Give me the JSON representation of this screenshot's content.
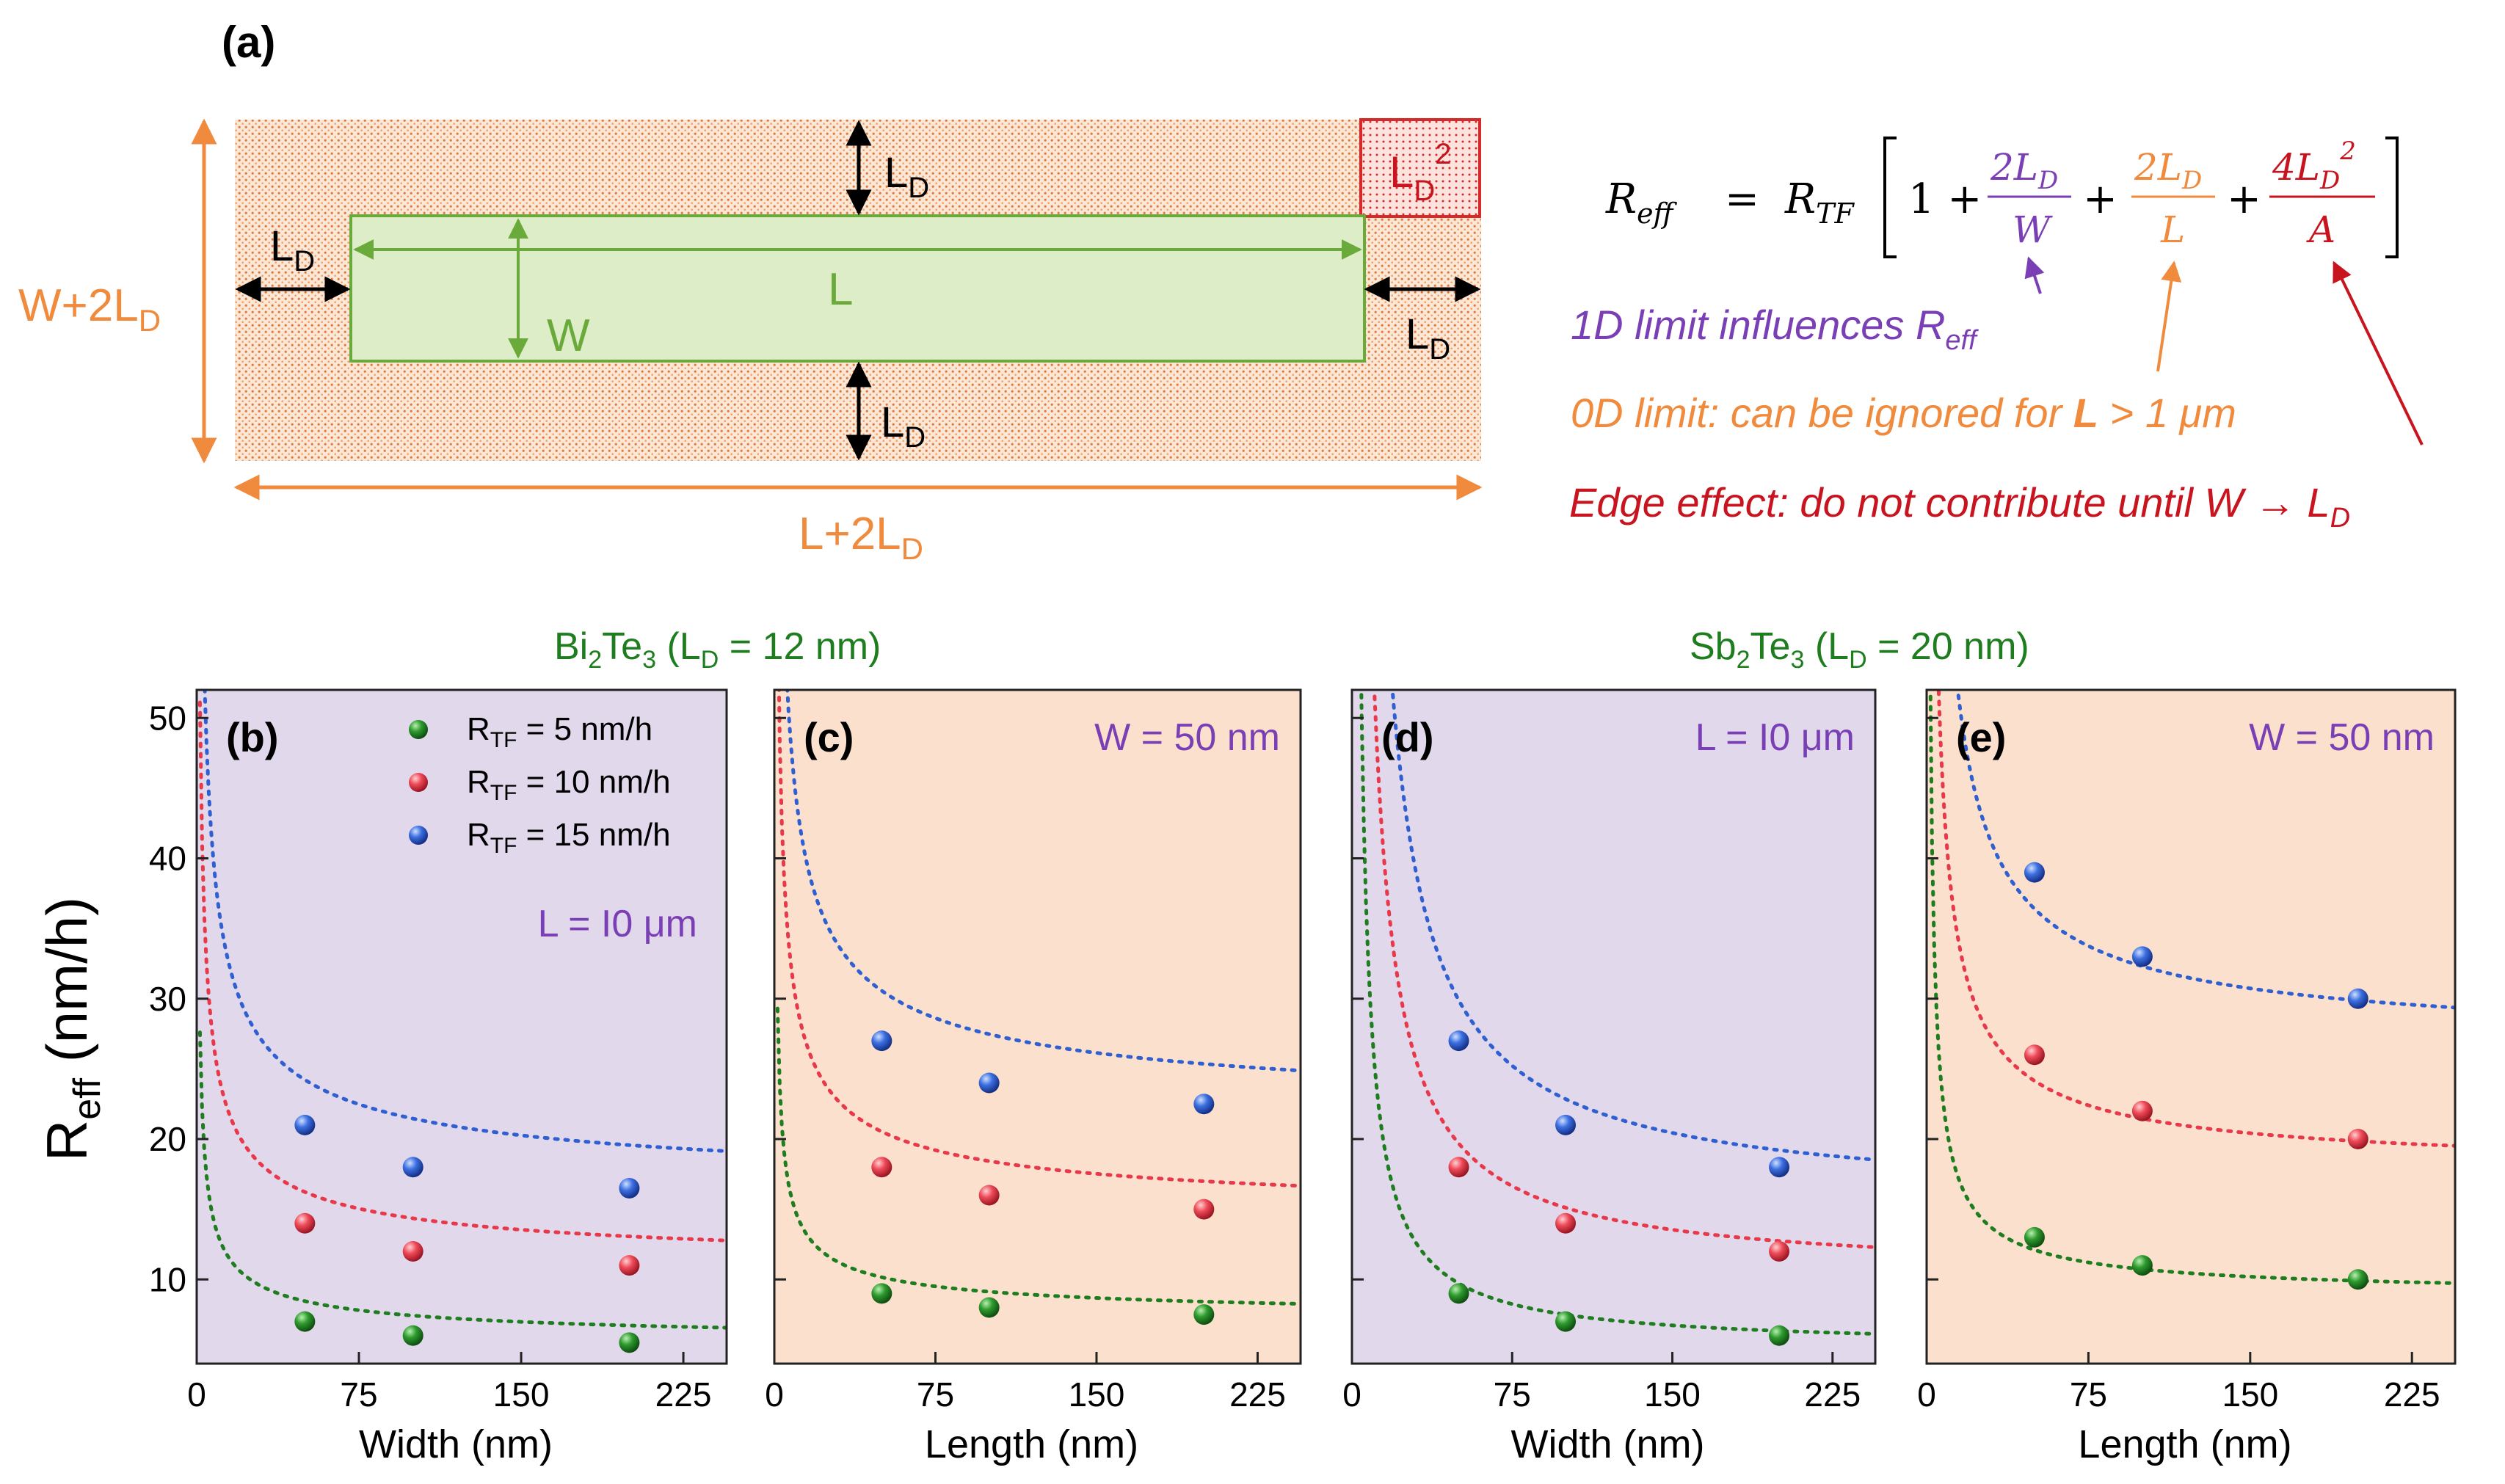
{
  "colors": {
    "green": "#1e7d1e",
    "red": "#e8394a",
    "blue": "#2f5fd0",
    "orange": "#f08a3c",
    "purple": "#7a3fb5",
    "darkred": "#c8141e",
    "panel_purple": "#e2d8ec",
    "panel_orange": "#fbe1cd",
    "rect_green": "#dcedc8",
    "rect_green_edge": "#6aaa3a"
  },
  "diagram": {
    "label": "(a)",
    "ld": "L",
    "ld_sub": "D",
    "ld_sq": "2",
    "w_label": "W",
    "l_label": "L",
    "w2_main": "W+2L",
    "l2_main": "L+2L"
  },
  "equation": {
    "lhs_main": "R",
    "lhs_sub": "eff",
    "equals": "=",
    "rtf_main": "R",
    "rtf_sub": "TF",
    "one_plus": "1 +",
    "plus": "+",
    "f1_num": "2L",
    "f1_num_sub": "D",
    "f1_den": "W",
    "f2_num": "2L",
    "f2_num_sub": "D",
    "f2_den": "L",
    "f3_num": "4L",
    "f3_num_sub": "D",
    "f3_num_sup": "2",
    "f3_den": "A"
  },
  "annotations": {
    "a1_main": "1D limit influences R",
    "a1_sub": "eff",
    "a2_prefix": "0D limit: can be ignored for ",
    "a2_bold": "L",
    "a2_suffix": " > 1 μm",
    "a3_main": "Edge effect: do not contribute until W → L",
    "a3_sub": "D"
  },
  "material_titles": {
    "bi_1": "Bi",
    "bi_2": "2",
    "bi_3": "Te",
    "bi_4": "3",
    "bi_5": " (L",
    "bi_6": "D",
    "bi_7": " = 12 nm)",
    "sb_1": "Sb",
    "sb_2": "2",
    "sb_3": "Te",
    "sb_4": "3",
    "sb_5": " (L",
    "sb_6": "D",
    "sb_7": " = 20 nm)"
  },
  "ylabel_main": "R",
  "ylabel_sub": "eff",
  "ylabel_unit": " (nm/h)",
  "legend": [
    {
      "pre": "R",
      "sub": "TF",
      "post": " =   5 nm/h"
    },
    {
      "pre": "R",
      "sub": "TF",
      "post": " = 10 nm/h"
    },
    {
      "pre": "R",
      "sub": "TF",
      "post": " = 15 nm/h"
    }
  ],
  "chart_data": [
    {
      "type": "scatter",
      "label": "(b)",
      "note": "L = I0 μm",
      "background": "purple",
      "xlabel": "Width (nm)",
      "ylabel": "Reff (nm/h)",
      "xlim": [
        0,
        245
      ],
      "ylim": [
        4,
        52
      ],
      "xticks": [
        0,
        75,
        150,
        225
      ],
      "yticks": [
        10,
        20,
        30,
        40,
        50
      ],
      "x": [
        50,
        100,
        200
      ],
      "series": [
        {
          "name": "RTF = 5 nm/h",
          "color": "green",
          "values": [
            7,
            6,
            5.5
          ],
          "fit_a": 5.2,
          "fit_b": 28,
          "fit_c": 0.55
        },
        {
          "name": "RTF = 10 nm/h",
          "color": "red",
          "values": [
            14,
            12,
            11
          ],
          "fit_a": 10.3,
          "fit_b": 51,
          "fit_c": 0.55
        },
        {
          "name": "RTF = 15 nm/h",
          "color": "blue",
          "values": [
            21,
            18,
            16.5
          ],
          "fit_a": 15.5,
          "fit_b": 75,
          "fit_c": 0.55
        }
      ]
    },
    {
      "type": "scatter",
      "label": "(c)",
      "note": "W = 50 nm",
      "background": "orange",
      "xlabel": "Length (nm)",
      "ylabel": "Reff (nm/h)",
      "xlim": [
        0,
        245
      ],
      "ylim": [
        4,
        52
      ],
      "xticks": [
        0,
        75,
        150,
        225
      ],
      "yticks": [
        10,
        20,
        30,
        40,
        50
      ],
      "x": [
        50,
        100,
        200
      ],
      "series": [
        {
          "name": "RTF = 5 nm/h",
          "color": "green",
          "values": [
            9,
            8,
            7.5
          ],
          "fit_a": 6.9,
          "fit_b": 28,
          "fit_c": 0.55
        },
        {
          "name": "RTF = 10 nm/h",
          "color": "red",
          "values": [
            18,
            16,
            15
          ],
          "fit_a": 13.9,
          "fit_b": 57,
          "fit_c": 0.55
        },
        {
          "name": "RTF = 15 nm/h",
          "color": "blue",
          "values": [
            27,
            24,
            22.5
          ],
          "fit_a": 20.8,
          "fit_b": 84,
          "fit_c": 0.55
        }
      ]
    },
    {
      "type": "scatter",
      "label": "(d)",
      "note": "L = I0 μm",
      "background": "purple",
      "xlabel": "Width (nm)",
      "ylabel": "Reff (nm/h)",
      "xlim": [
        0,
        245
      ],
      "ylim": [
        4,
        52
      ],
      "xticks": [
        0,
        75,
        150,
        225
      ],
      "yticks": [
        10,
        20,
        30,
        40,
        50
      ],
      "x": [
        50,
        100,
        200
      ],
      "series": [
        {
          "name": "RTF = 5 nm/h",
          "color": "green",
          "values": [
            9,
            7,
            6
          ],
          "fit_a": 5.1,
          "fit_b": 190,
          "fit_c": 0.95
        },
        {
          "name": "RTF = 10 nm/h",
          "color": "red",
          "values": [
            18,
            14,
            12
          ],
          "fit_a": 10.2,
          "fit_b": 390,
          "fit_c": 0.95
        },
        {
          "name": "RTF = 15 nm/h",
          "color": "blue",
          "values": [
            27,
            21,
            18
          ],
          "fit_a": 15.3,
          "fit_b": 600,
          "fit_c": 0.95
        }
      ]
    },
    {
      "type": "scatter",
      "label": "(e)",
      "note": "W = 50 nm",
      "background": "orange",
      "xlabel": "Length (nm)",
      "ylabel": "Reff (nm/h)",
      "xlim": [
        0,
        245
      ],
      "ylim": [
        4,
        52
      ],
      "xticks": [
        0,
        75,
        150,
        225
      ],
      "yticks": [
        10,
        20,
        30,
        40,
        50
      ],
      "x": [
        50,
        100,
        200
      ],
      "series": [
        {
          "name": "RTF = 5 nm/h",
          "color": "green",
          "values": [
            13,
            11,
            10
          ],
          "fit_a": 8.7,
          "fit_b": 64,
          "fit_c": 0.75
        },
        {
          "name": "RTF = 10 nm/h",
          "color": "red",
          "values": [
            26,
            22,
            20
          ],
          "fit_a": 17.5,
          "fit_b": 125,
          "fit_c": 0.75
        },
        {
          "name": "RTF = 15 nm/h",
          "color": "blue",
          "values": [
            39,
            33,
            30
          ],
          "fit_a": 26.3,
          "fit_b": 190,
          "fit_c": 0.75
        }
      ]
    }
  ]
}
